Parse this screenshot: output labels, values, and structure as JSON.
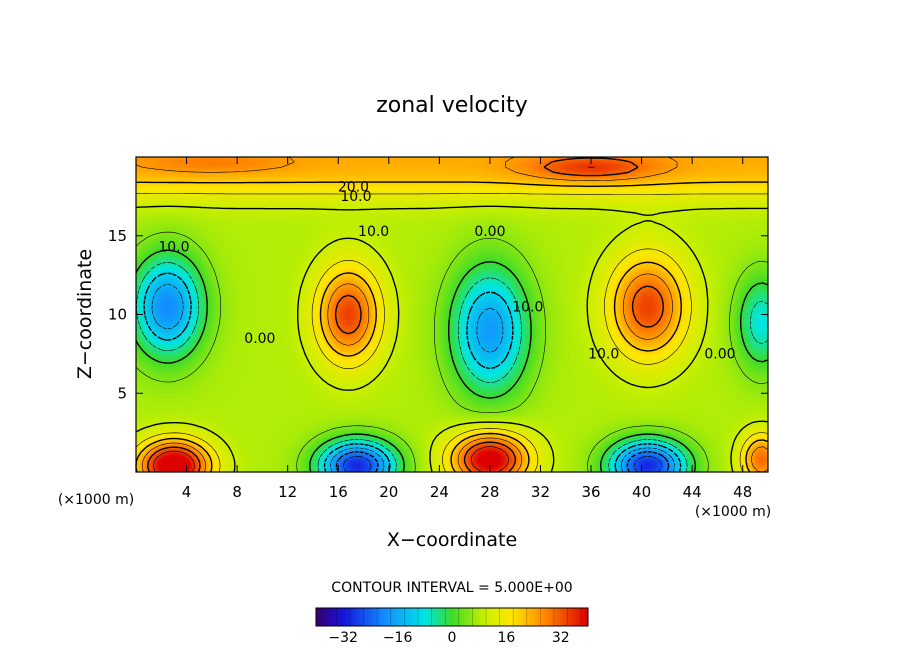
{
  "chart_data": {
    "type": "heatmap",
    "title": "zonal velocity",
    "xlabel": "X−coordinate",
    "ylabel": "Z−coordinate",
    "x_unit_left": "(×1000 m)",
    "x_unit_right": "(×1000 m)",
    "xlim": [
      0,
      50
    ],
    "ylim": [
      0,
      20
    ],
    "x_ticks": [
      {
        "value": 4,
        "label": "4"
      },
      {
        "value": 8,
        "label": "8"
      },
      {
        "value": 12,
        "label": "12"
      },
      {
        "value": 16,
        "label": "16"
      },
      {
        "value": 20,
        "label": "20"
      },
      {
        "value": 24,
        "label": "24"
      },
      {
        "value": 28,
        "label": "28"
      },
      {
        "value": 32,
        "label": "32"
      },
      {
        "value": 36,
        "label": "36"
      },
      {
        "value": 40,
        "label": "40"
      },
      {
        "value": 44,
        "label": "44"
      },
      {
        "value": 48,
        "label": "48"
      }
    ],
    "y_ticks": [
      {
        "value": 5,
        "label": "5"
      },
      {
        "value": 10,
        "label": "10"
      },
      {
        "value": 15,
        "label": "15"
      }
    ],
    "contour_interval_text": "CONTOUR INTERVAL = 5.000E+00",
    "contour_labels": [
      {
        "text": "20.0",
        "x": 17.2,
        "y": 17.8
      },
      {
        "text": "10.0",
        "x": 17.4,
        "y": 17.2
      },
      {
        "text": "10.0",
        "x": 3.0,
        "y": 14.0
      },
      {
        "text": "10.0",
        "x": 18.8,
        "y": 15.0
      },
      {
        "text": "0.00",
        "x": 28.0,
        "y": 15.0
      },
      {
        "text": "0.00",
        "x": 9.8,
        "y": 8.2
      },
      {
        "text": "10.0",
        "x": 31.0,
        "y": 10.2
      },
      {
        "text": "10.0",
        "x": 37.0,
        "y": 7.2
      },
      {
        "text": "0.00",
        "x": 46.2,
        "y": 7.2
      }
    ],
    "colorbar": {
      "range": [
        -40,
        40
      ],
      "ticks": [
        {
          "value": -32,
          "label": "−32"
        },
        {
          "value": -16,
          "label": "−16"
        },
        {
          "value": 0,
          "label": "0"
        },
        {
          "value": 16,
          "label": "16"
        },
        {
          "value": 32,
          "label": "32"
        }
      ]
    },
    "features": [
      {
        "x": 2.5,
        "y": 10.5,
        "sx": 2.8,
        "sy": 3.2,
        "amp": -28
      },
      {
        "x": 16.8,
        "y": 10.0,
        "sx": 2.5,
        "sy": 3.0,
        "amp": 26
      },
      {
        "x": 28.0,
        "y": 9.0,
        "sx": 3.0,
        "sy": 4.0,
        "amp": -26
      },
      {
        "x": 40.5,
        "y": 10.5,
        "sx": 3.0,
        "sy": 3.2,
        "amp": 26
      },
      {
        "x": 49.5,
        "y": 9.5,
        "sx": 2.0,
        "sy": 3.0,
        "amp": -16
      },
      {
        "x": 3.0,
        "y": 0.4,
        "sx": 2.8,
        "sy": 1.6,
        "amp": 38
      },
      {
        "x": 17.5,
        "y": 0.4,
        "sx": 3.0,
        "sy": 1.6,
        "amp": -38
      },
      {
        "x": 28.0,
        "y": 0.8,
        "sx": 3.0,
        "sy": 1.7,
        "amp": 35
      },
      {
        "x": 40.5,
        "y": 0.4,
        "sx": 3.0,
        "sy": 1.6,
        "amp": -38
      },
      {
        "x": 49.5,
        "y": 0.8,
        "sx": 1.6,
        "sy": 1.6,
        "amp": 22
      },
      {
        "x": 36.0,
        "y": 19.3,
        "sx": 5.0,
        "sy": 0.8,
        "amp": 12
      },
      {
        "x": 6.0,
        "y": 19.6,
        "sx": 6.0,
        "sy": 0.7,
        "amp": 5
      }
    ],
    "base_field": {
      "bottom": 8,
      "top_value": 24,
      "jump_z": 17.8,
      "jump_width": 0.55
    }
  }
}
